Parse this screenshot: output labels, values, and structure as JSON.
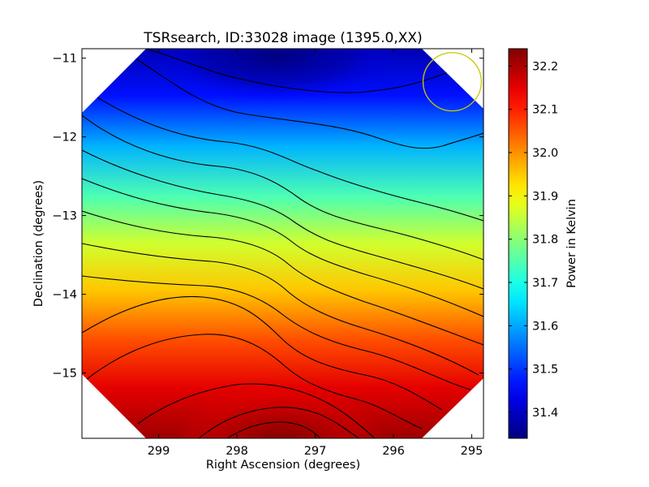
{
  "chart_data": {
    "type": "heatmap",
    "subtype": "contour-filled sky map",
    "title": "TSRsearch, ID:33028 image (1395.0,XX)",
    "xlabel": "Right Ascension (degrees)",
    "ylabel": "Declination (degrees)",
    "x_direction": "decreasing-left-to-right",
    "xlim": [
      299.98,
      294.85
    ],
    "ylim": [
      -15.83,
      -10.88
    ],
    "xticks": [
      299,
      298,
      297,
      296,
      295
    ],
    "yticks": [
      -11,
      -12,
      -13,
      -14,
      -15
    ],
    "x_tick_labels": [
      "299",
      "298",
      "297",
      "296",
      "295"
    ],
    "y_tick_labels": [
      "−11",
      "−12",
      "−13",
      "−14",
      "−15"
    ],
    "field_shape": "octagon (corners masked)",
    "colorbar": {
      "label": "Power in Kelvin",
      "colormap": "jet",
      "range": [
        31.34,
        32.24
      ],
      "ticks": [
        31.4,
        31.5,
        31.6,
        31.7,
        31.8,
        31.9,
        32.0,
        32.1,
        32.2
      ],
      "tick_labels": [
        "31.4",
        "31.5",
        "31.6",
        "31.7",
        "31.8",
        "31.9",
        "32.0",
        "32.1",
        "32.2"
      ]
    },
    "field_summary": {
      "min_value_location": [
        297.4,
        -10.9
      ],
      "max_value_location": [
        297.4,
        -15.9
      ],
      "gradient": "increases from top (blue, ~31.35 K) to bottom (dark red, ~32.23 K)"
    },
    "contour_lines": {
      "color": "#000000",
      "approx_count": 16
    },
    "annotations": [
      {
        "type": "circle",
        "center": [
          295.25,
          -11.3
        ],
        "radius_deg": 0.37,
        "color": "#c8c800"
      }
    ]
  }
}
